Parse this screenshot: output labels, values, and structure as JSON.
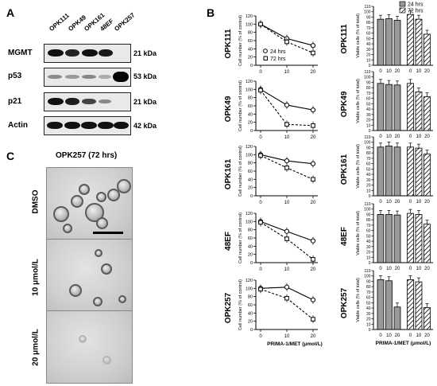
{
  "panel_a": {
    "label": "A",
    "lanes": [
      "OPK111",
      "OPK49",
      "OPK161",
      "48EF",
      "OPK257"
    ],
    "proteins": [
      {
        "name": "MGMT",
        "kda": "21 kDa"
      },
      {
        "name": "p53",
        "kda": "53 kDa"
      },
      {
        "name": "p21",
        "kda": "21 kDa"
      },
      {
        "name": "Actin",
        "kda": "42 kDa"
      }
    ]
  },
  "panel_b": {
    "label": "B"
  },
  "panel_c": {
    "label": "C",
    "title": "OPK257 (72 hrs)",
    "rows": [
      "DMSO",
      "10 μmol/L",
      "20 μmol/L"
    ]
  },
  "chart_data": [
    {
      "type": "line",
      "cell_line": "OPK111",
      "ylabel": "Cell number (% of control)",
      "ylim": [
        0,
        120
      ],
      "x": [
        0,
        10,
        20
      ],
      "xticks": [
        "0",
        "10",
        "20"
      ],
      "yticks": [
        0,
        20,
        40,
        60,
        80,
        100,
        120
      ],
      "legend": [
        "24 hrs",
        "72 hrs"
      ],
      "series": [
        {
          "name": "24 hrs",
          "values": [
            100,
            65,
            48
          ]
        },
        {
          "name": "72 hrs",
          "values": [
            100,
            57,
            30
          ]
        }
      ]
    },
    {
      "type": "line",
      "cell_line": "OPK49",
      "ylabel": "Cell number (% of control)",
      "ylim": [
        0,
        120
      ],
      "x": [
        0,
        10,
        20
      ],
      "xticks": [
        "0",
        "10",
        "20"
      ],
      "yticks": [
        0,
        20,
        40,
        60,
        80,
        100,
        120
      ],
      "series": [
        {
          "name": "24 hrs",
          "values": [
            100,
            62,
            50
          ]
        },
        {
          "name": "72 hrs",
          "values": [
            98,
            15,
            12
          ]
        }
      ]
    },
    {
      "type": "line",
      "cell_line": "OPK161",
      "ylabel": "Cell number (% of control)",
      "ylim": [
        0,
        120
      ],
      "x": [
        0,
        10,
        20
      ],
      "xticks": [
        "0",
        "10",
        "20"
      ],
      "yticks": [
        0,
        20,
        40,
        60,
        80,
        100,
        120
      ],
      "series": [
        {
          "name": "24 hrs",
          "values": [
            100,
            85,
            78
          ]
        },
        {
          "name": "72 hrs",
          "values": [
            98,
            68,
            40
          ]
        }
      ]
    },
    {
      "type": "line",
      "cell_line": "48EF",
      "ylabel": "Cell number (% of control)",
      "ylim": [
        0,
        120
      ],
      "x": [
        0,
        10,
        20
      ],
      "xticks": [
        "0",
        "10",
        "20"
      ],
      "yticks": [
        0,
        20,
        40,
        60,
        80,
        100,
        120
      ],
      "series": [
        {
          "name": "24 hrs",
          "values": [
            100,
            76,
            53
          ]
        },
        {
          "name": "72 hrs",
          "values": [
            98,
            58,
            8
          ]
        }
      ]
    },
    {
      "type": "line",
      "cell_line": "OPK257",
      "ylabel": "Cell number (% of control)",
      "ylim": [
        0,
        120
      ],
      "xlabel": "PRIMA-1/MET (μmol/L)",
      "x": [
        0,
        10,
        20
      ],
      "xticks": [
        "0",
        "10",
        "20"
      ],
      "yticks": [
        0,
        20,
        40,
        60,
        80,
        100,
        120
      ],
      "series": [
        {
          "name": "24 hrs",
          "values": [
            100,
            103,
            72
          ]
        },
        {
          "name": "72 hrs",
          "values": [
            98,
            76,
            25
          ]
        }
      ]
    },
    {
      "type": "bar",
      "cell_line": "OPK111",
      "ylabel": "Viable cells (% of total)",
      "ylim": [
        0,
        110
      ],
      "yticks": [
        0,
        10,
        20,
        30,
        40,
        50,
        60,
        70,
        80,
        90,
        100,
        110
      ],
      "xticks": [
        "0",
        "10",
        "20",
        "0",
        "10",
        "20"
      ],
      "legend": [
        "24 hrs",
        "72 hrs"
      ],
      "series": [
        {
          "name": "24 hrs",
          "values": [
            86,
            87,
            84
          ]
        },
        {
          "name": "72 hrs",
          "values": [
            95,
            86,
            58
          ]
        }
      ]
    },
    {
      "type": "bar",
      "cell_line": "OPK49",
      "ylabel": "Viable cells (% of total)",
      "ylim": [
        0,
        110
      ],
      "yticks": [
        0,
        10,
        20,
        30,
        40,
        50,
        60,
        70,
        80,
        90,
        100,
        110
      ],
      "xticks": [
        "0",
        "10",
        "20",
        "0",
        "10",
        "20"
      ],
      "series": [
        {
          "name": "24 hrs",
          "values": [
            88,
            86,
            85
          ]
        },
        {
          "name": "72 hrs",
          "values": [
            88,
            72,
            63
          ]
        }
      ]
    },
    {
      "type": "bar",
      "cell_line": "OPK161",
      "ylabel": "Viable cells (% of total)",
      "ylim": [
        0,
        110
      ],
      "yticks": [
        0,
        10,
        20,
        30,
        40,
        50,
        60,
        70,
        80,
        90,
        100,
        110
      ],
      "xticks": [
        "0",
        "10",
        "20",
        "0",
        "10",
        "20"
      ],
      "series": [
        {
          "name": "24 hrs",
          "values": [
            91,
            93,
            91
          ]
        },
        {
          "name": "72 hrs",
          "values": [
            91,
            89,
            78
          ]
        }
      ]
    },
    {
      "type": "bar",
      "cell_line": "48EF",
      "ylabel": "Viable cells (% of total)",
      "ylim": [
        0,
        110
      ],
      "yticks": [
        0,
        10,
        20,
        30,
        40,
        50,
        60,
        70,
        80,
        90,
        100,
        110
      ],
      "xticks": [
        "0",
        "10",
        "20",
        "0",
        "10",
        "20"
      ],
      "series": [
        {
          "name": "24 hrs",
          "values": [
            90,
            90,
            89
          ]
        },
        {
          "name": "72 hrs",
          "values": [
            92,
            90,
            72
          ]
        }
      ]
    },
    {
      "type": "bar",
      "cell_line": "OPK257",
      "ylabel": "Viable cells (% of total)",
      "ylim": [
        0,
        110
      ],
      "xlabel": "PRIMA-1/MET (μmol/L)",
      "yticks": [
        0,
        10,
        20,
        30,
        40,
        50,
        60,
        70,
        80,
        90,
        100,
        110
      ],
      "xticks": [
        "0",
        "10",
        "20",
        "0",
        "10",
        "20"
      ],
      "series": [
        {
          "name": "24 hrs",
          "values": [
            93,
            91,
            42
          ]
        },
        {
          "name": "72 hrs",
          "values": [
            93,
            89,
            41
          ]
        }
      ]
    }
  ]
}
